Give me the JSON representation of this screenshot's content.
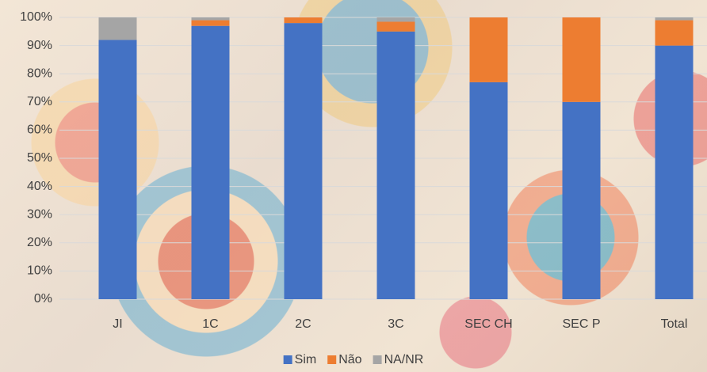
{
  "chart_data": {
    "type": "stacked-bar",
    "categories": [
      "JI",
      "1C",
      "2C",
      "3C",
      "SEC CH",
      "SEC P",
      "Total"
    ],
    "series": [
      {
        "name": "Sim",
        "color": "#4472c4",
        "values": [
          92,
          97,
          98,
          95,
          77,
          70,
          90
        ]
      },
      {
        "name": "Não",
        "color": "#ed7d31",
        "values": [
          0,
          2,
          2,
          3.5,
          23,
          30,
          9
        ]
      },
      {
        "name": "NA/NR",
        "color": "#a5a5a5",
        "values": [
          8,
          1,
          0,
          1.5,
          0,
          0,
          1
        ]
      }
    ],
    "ylim": [
      0,
      100
    ],
    "yticks": [
      {
        "value": 0,
        "label": "0%"
      },
      {
        "value": 10,
        "label": "10%"
      },
      {
        "value": 20,
        "label": "20%"
      },
      {
        "value": 30,
        "label": "30%"
      },
      {
        "value": 40,
        "label": "40%"
      },
      {
        "value": 50,
        "label": "50%"
      },
      {
        "value": 60,
        "label": "60%"
      },
      {
        "value": 70,
        "label": "70%"
      },
      {
        "value": 80,
        "label": "80%"
      },
      {
        "value": 90,
        "label": "90%"
      },
      {
        "value": 100,
        "label": "100%"
      }
    ],
    "grid": true,
    "legend": "bottom"
  }
}
